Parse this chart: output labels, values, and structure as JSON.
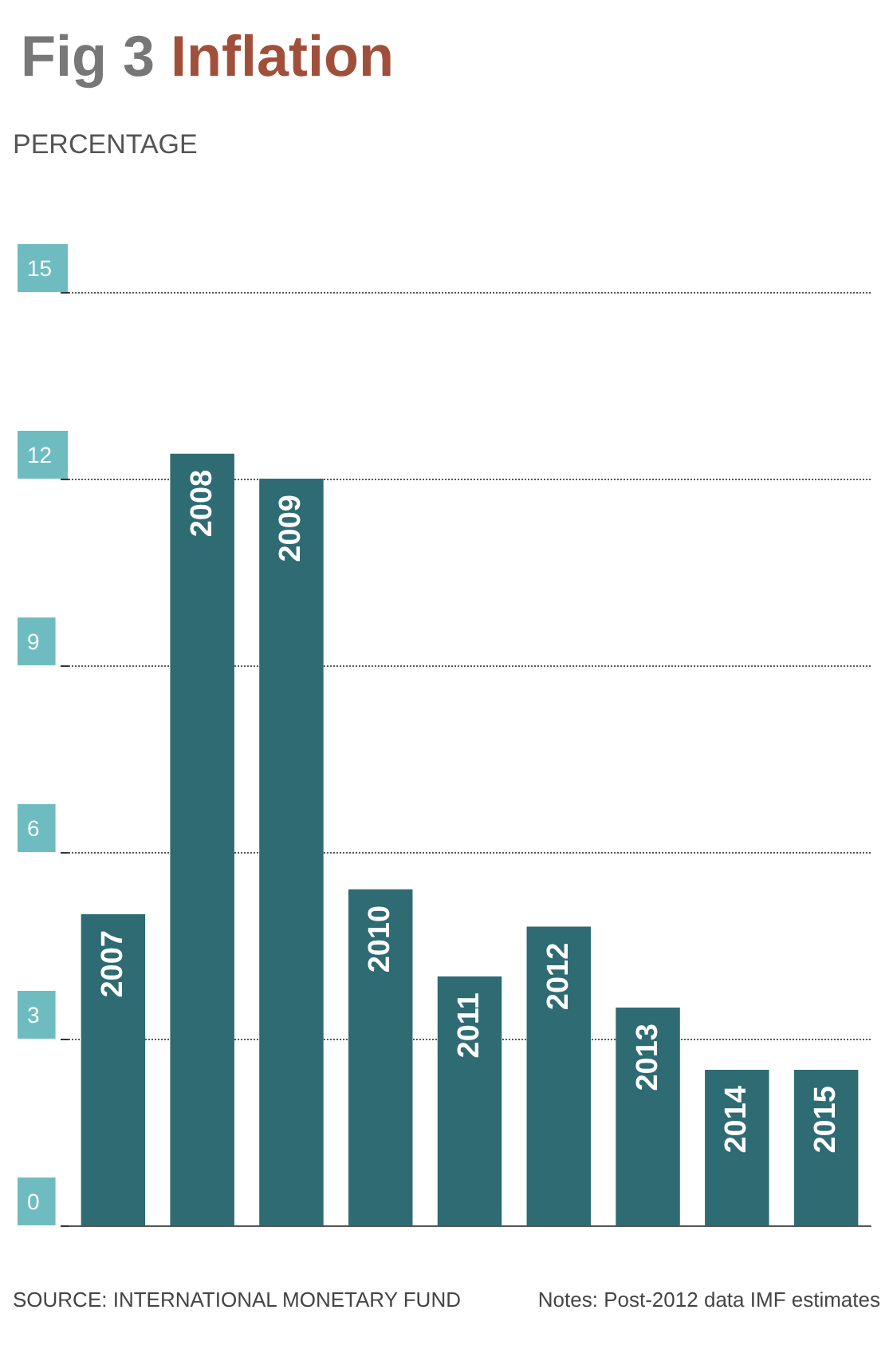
{
  "chart_data": {
    "type": "bar",
    "title": "Fig 3 Inflation",
    "ylabel": "PERCENTAGE",
    "categories": [
      "2007",
      "2008",
      "2009",
      "2010",
      "2011",
      "2012",
      "2013",
      "2014",
      "2015"
    ],
    "values": [
      5.0,
      12.4,
      12.0,
      5.4,
      4.0,
      4.8,
      3.5,
      2.5,
      2.5
    ],
    "color": "#2e6b73",
    "ylim": [
      0,
      15
    ],
    "yticks": [
      0,
      3,
      6,
      9,
      12,
      15
    ],
    "grid": "y",
    "tick_labels": "y",
    "annotations": [
      "SOURCE: INTERNATIONAL MONETARY FUND",
      "Notes: Post-2012 data IMF estimates"
    ]
  }
}
